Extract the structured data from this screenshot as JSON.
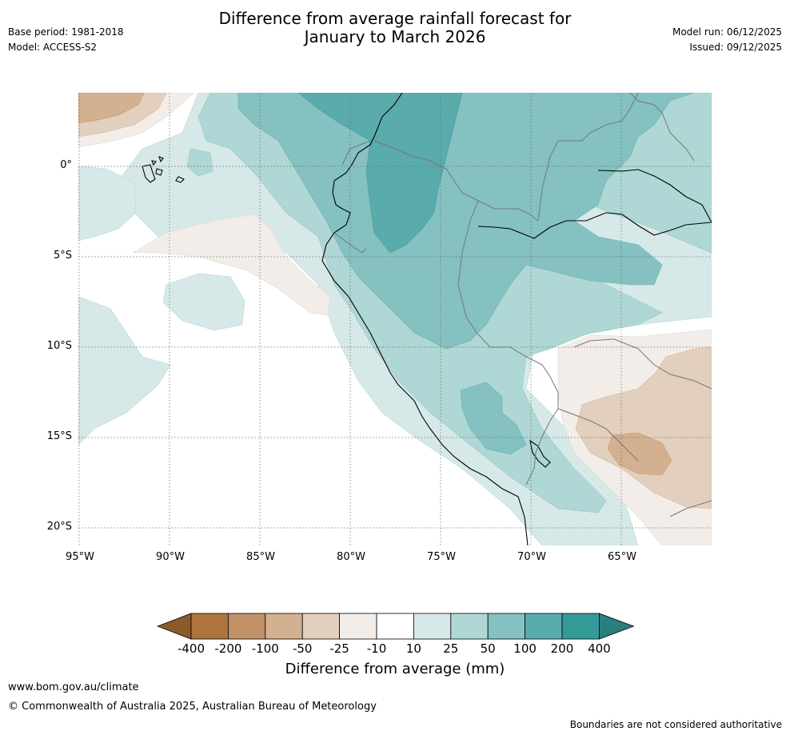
{
  "header": {
    "title_line1": "Difference from average rainfall forecast for",
    "title_line2": "January to March 2026",
    "base_period": "Base period: 1981-2018",
    "model": "Model: ACCESS-S2",
    "model_run": "Model run: 06/12/2025",
    "issued": "Issued: 09/12/2025"
  },
  "map": {
    "latitude_labels": [
      "0°",
      "5°S",
      "10°S",
      "15°S",
      "20°S"
    ],
    "longitude_labels": [
      "95°W",
      "90°W",
      "85°W",
      "80°W",
      "75°W",
      "70°W",
      "65°W"
    ]
  },
  "colorbar": {
    "title": "Difference from average (mm)",
    "tick_labels": [
      "-400",
      "-200",
      "-100",
      "-50",
      "-25",
      "-10",
      "10",
      "25",
      "50",
      "100",
      "200",
      "400"
    ],
    "colors": [
      "#8a5a2b",
      "#ad743d",
      "#c19168",
      "#d3b08f",
      "#e3cfbd",
      "#f2ede8",
      "#ffffff",
      "#d6e9e8",
      "#aed7d5",
      "#84c1c0",
      "#5aabab",
      "#349a98",
      "#2a7f7e"
    ]
  },
  "footer": {
    "url": "www.bom.gov.au/climate",
    "copyright": "© Commonwealth of Australia 2025, Australian Bureau of Meteorology",
    "disclaimer": "Boundaries are not considered authoritative"
  }
}
